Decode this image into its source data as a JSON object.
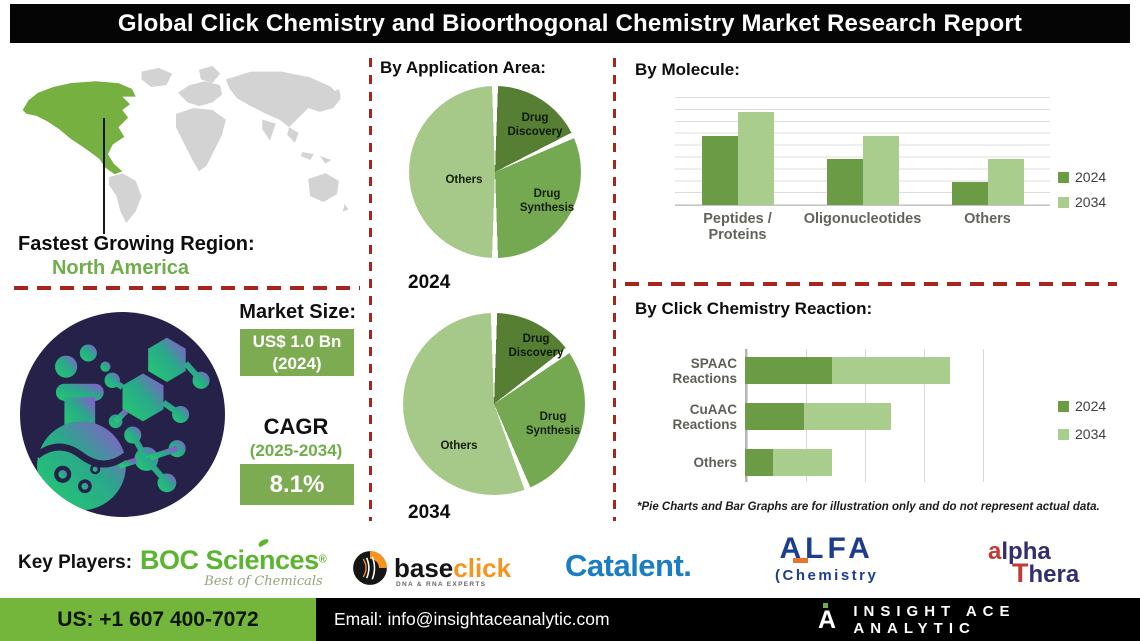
{
  "title": "Global Click Chemistry and Bioorthogonal Chemistry Market Research Report",
  "region": {
    "label": "Fastest Growing Region:",
    "value": "North America"
  },
  "market": {
    "heading": "Market Size:",
    "size_value": "US$ 1.0 Bn",
    "size_year": "(2024)",
    "cagr_label": "CAGR",
    "cagr_period": "(2025-2034)",
    "cagr_value": "8.1%"
  },
  "disclaimer": "*Pie Charts and Bar Graphs are for illustration only and do not represent actual data.",
  "key_players": {
    "label": "Key Players:",
    "boc": {
      "name": "BOC Sciences",
      "reg": "®",
      "tagline": "Best of Chemicals"
    },
    "baseclick": {
      "base": "base",
      "click": "click",
      "tagline": "DNA & RNA EXPERTS"
    },
    "catalent": {
      "name": "Catalent."
    },
    "alfa": {
      "line1": "ALFA",
      "paren": "(",
      "line2": "Chemistry"
    },
    "alphathera": {
      "a": "a",
      "lpha": "lpha",
      "t": "T",
      "hera": "hera"
    }
  },
  "footer": {
    "phone": "US: +1 607 400-7072",
    "email": "Email: info@insightaceanalytic.com",
    "brand": "INSIGHT ACE ANALYTIC",
    "logo_letter": "A"
  },
  "colors": {
    "slice_drug_discovery": "#567f34",
    "slice_drug_synthesis": "#74a851",
    "slice_others": "#a6c888",
    "series_2024": "#6b9c45",
    "series_2034": "#a9cd8c",
    "accent_box_green": "#7dab52",
    "footer_green": "#74b63c",
    "region_green": "#6fae4b",
    "dash_red": "#a8241c",
    "navy_circle": "#252149",
    "map_gray": "#d3d3d3",
    "map_green": "#76b041"
  },
  "chart_data": [
    {
      "type": "pie",
      "section_title": "By Application Area:",
      "year_label": "2024",
      "labels": [
        "Drug Discovery",
        "Drug Synthesis",
        "Others"
      ],
      "values": [
        18,
        32,
        50
      ],
      "colors": [
        "#567f34",
        "#74a851",
        "#a6c888"
      ]
    },
    {
      "type": "pie",
      "year_label": "2034",
      "labels": [
        "Drug Discovery",
        "Drug Synthesis",
        "Others"
      ],
      "values": [
        15,
        29,
        56
      ],
      "colors": [
        "#567f34",
        "#74a851",
        "#a6c888"
      ]
    },
    {
      "type": "bar",
      "section_title": "By Molecule:",
      "categories": [
        "Peptides / Proteins",
        "Oligonucleotides",
        "Others"
      ],
      "series": [
        {
          "name": "2024",
          "color": "#6b9c45",
          "values": [
            64,
            43,
            21
          ]
        },
        {
          "name": "2034",
          "color": "#a9cd8c",
          "values": [
            86,
            64,
            43
          ]
        }
      ],
      "ylim": [
        0,
        100
      ],
      "grid": "horizontal",
      "legend_position": "right"
    },
    {
      "type": "bar-horizontal-stacked",
      "section_title": "By Click Chemistry Reaction:",
      "categories": [
        "SPAAC Reactions",
        "CuAAC Reactions",
        "Others"
      ],
      "series": [
        {
          "name": "2024",
          "color": "#6b9c45",
          "values": [
            37,
            25,
            12
          ]
        },
        {
          "name": "2034",
          "color": "#a9cd8c",
          "values": [
            50,
            37,
            25
          ]
        }
      ],
      "xlim": [
        0,
        100
      ],
      "grid": "vertical",
      "legend_position": "right"
    }
  ]
}
